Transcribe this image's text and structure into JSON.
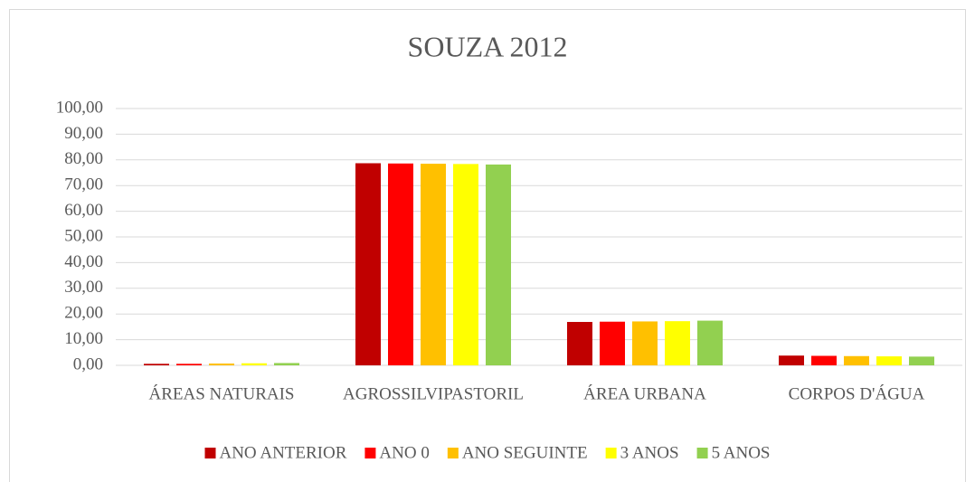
{
  "chart_data": {
    "type": "bar",
    "title": "SOUZA 2012",
    "categories": [
      "ÁREAS NATURAIS",
      "AGROSSILVIPASTORIL",
      "ÁREA URBANA",
      "CORPOS D'ÁGUA"
    ],
    "series": [
      {
        "name": "ANO ANTERIOR",
        "color": "#c00000",
        "values": [
          0.6,
          78.7,
          16.9,
          3.8
        ]
      },
      {
        "name": "ANO 0",
        "color": "#ff0000",
        "values": [
          0.6,
          78.6,
          17.0,
          3.7
        ]
      },
      {
        "name": "ANO SEGUINTE",
        "color": "#ffc000",
        "values": [
          0.7,
          78.5,
          17.1,
          3.6
        ]
      },
      {
        "name": "3 ANOS",
        "color": "#ffff00",
        "values": [
          0.8,
          78.4,
          17.2,
          3.5
        ]
      },
      {
        "name": "5 ANOS",
        "color": "#92d050",
        "values": [
          0.9,
          78.2,
          17.4,
          3.4
        ]
      }
    ],
    "ylim": [
      0,
      100
    ],
    "yticks": [
      {
        "value": 0,
        "label": "0,00"
      },
      {
        "value": 10,
        "label": "10,00"
      },
      {
        "value": 20,
        "label": "20,00"
      },
      {
        "value": 30,
        "label": "30,00"
      },
      {
        "value": 40,
        "label": "40,00"
      },
      {
        "value": 50,
        "label": "50,00"
      },
      {
        "value": 60,
        "label": "60,00"
      },
      {
        "value": 70,
        "label": "70,00"
      },
      {
        "value": 80,
        "label": "80,00"
      },
      {
        "value": 90,
        "label": "90,00"
      },
      {
        "value": 100,
        "label": "100,00"
      }
    ],
    "grid": true,
    "legend": "bottom"
  }
}
